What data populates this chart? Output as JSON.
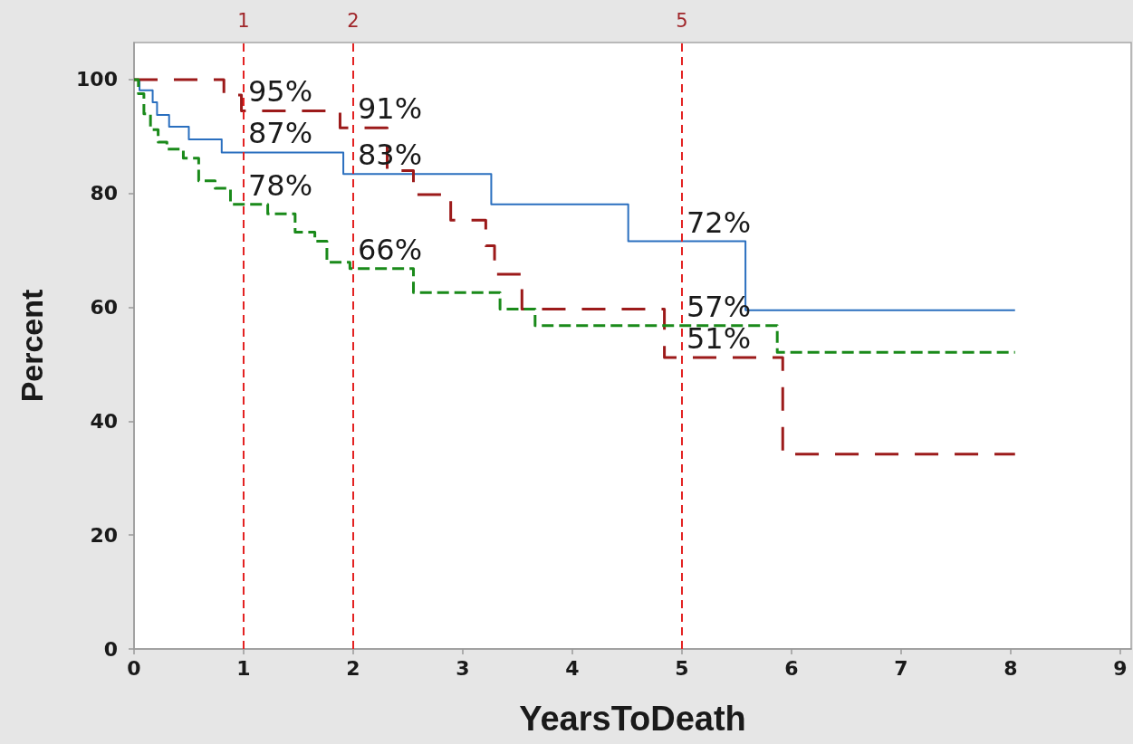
{
  "chart_data": {
    "type": "step",
    "xlabel": "YearsToDeath",
    "ylabel": "Percent",
    "xlim": [
      0,
      9.1
    ],
    "xticks": [
      0,
      1,
      2,
      3,
      4,
      5,
      6,
      7,
      8,
      9
    ],
    "ylim": [
      0,
      106.5
    ],
    "yticks": [
      0,
      20,
      40,
      60,
      80,
      100
    ],
    "grid": false,
    "marker": "none",
    "series": [
      {
        "color": "#2a6fbf",
        "line_style": "solid",
        "x": [
          0,
          0.05,
          0.17,
          0.21,
          0.32,
          0.5,
          0.8,
          1.91,
          3.26,
          4.51,
          5.58,
          8.04
        ],
        "values": [
          100,
          98.1,
          96,
          93.8,
          91.7,
          89.5,
          87.2,
          83.4,
          78.1,
          71.6,
          59.5,
          59.5
        ]
      },
      {
        "color": "#9c1a1a",
        "line_style": "dashed",
        "x": [
          0,
          0.82,
          0.98,
          1.88,
          2.31,
          2.55,
          2.89,
          3.21,
          3.29,
          3.54,
          4.84,
          5.92,
          8.04
        ],
        "values": [
          100,
          97.3,
          94.5,
          91.5,
          84,
          79.8,
          75.3,
          70.8,
          65.8,
          59.7,
          51.2,
          34.2,
          34.2
        ]
      },
      {
        "color": "#1a8a1a",
        "line_style": "dashed",
        "x": [
          0,
          0.04,
          0.09,
          0.15,
          0.22,
          0.3,
          0.45,
          0.59,
          0.74,
          0.88,
          1.22,
          1.47,
          1.65,
          1.76,
          1.97,
          2.55,
          3.34,
          3.66,
          5.87,
          8.04
        ],
        "values": [
          100,
          97.5,
          94,
          91.2,
          89,
          87.8,
          86.2,
          82.2,
          80.9,
          78.1,
          76.4,
          73.2,
          71.6,
          67.9,
          66.8,
          62.6,
          59.7,
          56.8,
          52.1,
          52.1
        ]
      }
    ],
    "ref_lines": [
      {
        "axis": "x",
        "value": 1,
        "label": "1",
        "color": "#e32222",
        "line_style": "dashed"
      },
      {
        "axis": "x",
        "value": 2,
        "label": "2",
        "color": "#e32222",
        "line_style": "dashed"
      },
      {
        "axis": "x",
        "value": 5,
        "label": "5",
        "color": "#e32222",
        "line_style": "dashed"
      }
    ],
    "annotations": [
      {
        "text": "95%",
        "x": 1,
        "y": 94.5
      },
      {
        "text": "87%",
        "x": 1,
        "y": 87.2
      },
      {
        "text": "78%",
        "x": 1,
        "y": 78.1
      },
      {
        "text": "91%",
        "x": 2,
        "y": 91.5
      },
      {
        "text": "83%",
        "x": 2,
        "y": 83.4
      },
      {
        "text": "66%",
        "x": 2,
        "y": 66.8
      },
      {
        "text": "72%",
        "x": 5,
        "y": 71.6
      },
      {
        "text": "57%",
        "x": 5,
        "y": 56.8
      },
      {
        "text": "51%",
        "x": 5,
        "y": 51.2
      }
    ]
  }
}
